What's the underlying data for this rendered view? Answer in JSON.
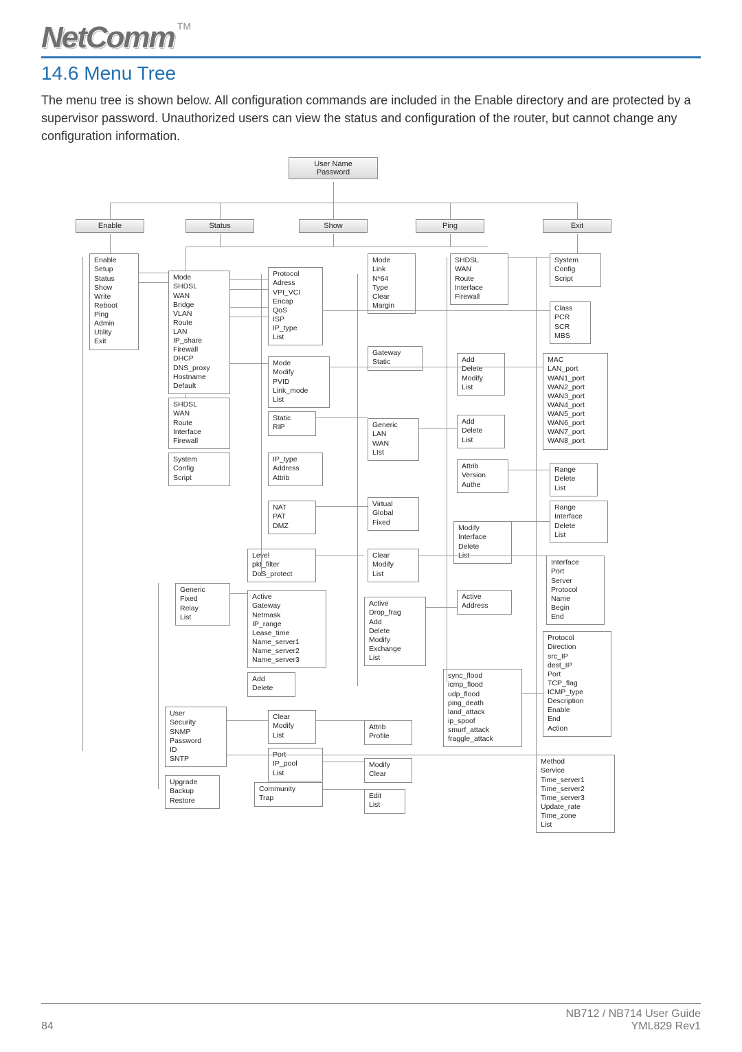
{
  "brand": {
    "name": "NetComm",
    "tm": "TM"
  },
  "heading": "14.6 Menu Tree",
  "intro": "The menu tree is shown below.  All configuration commands are included in the Enable directory and are protected by a supervisor password. Unauthorized users can view the status and configuration of the router, but cannot change any configuration information.",
  "root": {
    "line1": "User Name",
    "line2": "Password"
  },
  "tabs": {
    "enable": "Enable",
    "status": "Status",
    "show": "Show",
    "ping": "Ping",
    "exit": "Exit"
  },
  "col1": {
    "enable_list": [
      "Enable",
      "Setup",
      "Status",
      "Show",
      "Write",
      "Reboot",
      "Ping",
      "Admin",
      "Utility",
      "Exit"
    ]
  },
  "col2": {
    "setup_list": [
      "Mode",
      "SHDSL",
      "WAN",
      "Bridge",
      "VLAN",
      "Route",
      "LAN",
      "IP_share",
      "Firewall",
      "DHCP",
      "DNS_proxy",
      "Hostname",
      "Default"
    ],
    "show_list": [
      "SHDSL",
      "WAN",
      "Route",
      "Interface",
      "Firewall"
    ],
    "admin_list": [
      "System",
      "Config",
      "Script"
    ],
    "dhcp_list": [
      "Generic",
      "Fixed",
      "Relay",
      "List"
    ],
    "user_list": [
      "User",
      "Security",
      "SNMP",
      "Password",
      "ID",
      "SNTP"
    ],
    "util_list": [
      "Upgrade",
      "Backup",
      "Restore"
    ]
  },
  "col3": {
    "wan_list": [
      "Protocol",
      "Adress",
      "VPI_VCI",
      "Encap",
      "QoS",
      "ISP",
      "IP_type",
      "List"
    ],
    "vlan_list": [
      "Mode",
      "Modify",
      "PVID",
      "Link_mode",
      "List"
    ],
    "route_list": [
      "Static",
      "RIP"
    ],
    "lan_list": [
      "IP_type",
      "Address",
      "Attrib"
    ],
    "ipshare_list": [
      "NAT",
      "PAT",
      "DMZ"
    ],
    "firewall_list": [
      "Level",
      "pkt_filter",
      "DoS_protect"
    ],
    "dhcpgen_list": [
      "Active",
      "Gateway",
      "Netmask",
      "IP_range",
      "Lease_time",
      "Name_server1",
      "Name_server2",
      "Name_server3"
    ],
    "dhcpfix_list": [
      "Add",
      "Delete"
    ],
    "sec_list": [
      "Clear",
      "Modify",
      "List"
    ],
    "snmp_list": [
      "Port",
      "IP_pool",
      "List"
    ],
    "snmp2_list": [
      "Community",
      "Trap"
    ]
  },
  "col4": {
    "shdsl_list": [
      "Mode",
      "Link",
      "N*64",
      "Type",
      "Clear",
      "Margin"
    ],
    "bridge_list": [
      "Gateway",
      "Static"
    ],
    "rip_list": [
      "Generic",
      "LAN",
      "WAN",
      "LIst"
    ],
    "nat_list": [
      "Virtual",
      "Global",
      "Fixed"
    ],
    "pkt_list": [
      "Clear",
      "Modify",
      "List"
    ],
    "dos_list": [
      "Active",
      "Drop_frag",
      "Add",
      "Delete",
      "Modify",
      "Exchange",
      "List"
    ],
    "sec2_list": [
      "Attrib",
      "Profile"
    ],
    "ippool_list": [
      "Modify",
      "Clear"
    ],
    "comm_list": [
      "Edit",
      "List"
    ]
  },
  "col5": {
    "status_list": [
      "SHDSL",
      "WAN",
      "Route",
      "Interface",
      "Firewall"
    ],
    "static_list": [
      "Add",
      "Delete",
      "Modify",
      "List"
    ],
    "riplan_list": [
      "Add",
      "Delete",
      "List"
    ],
    "lanA_list": [
      "Attrib",
      "Version",
      "Authe"
    ],
    "pat_list": [
      "Modify",
      "Interface",
      "Delete",
      "List"
    ],
    "dosA_list": [
      "Active",
      "Address"
    ],
    "dosB_list": [
      "sync_flood",
      "icmp_flood",
      "udp_flood",
      "ping_death",
      "land_attack",
      "ip_spoof",
      "smurf_attack",
      "fraggle_attack"
    ]
  },
  "col6": {
    "exit_list": [
      "System",
      "Config",
      "Script"
    ],
    "qos_list": [
      "Class",
      "PCR",
      "SCR",
      "MBS"
    ],
    "vlanmod_list": [
      "MAC",
      "LAN_port",
      "WAN1_port",
      "WAN2_port",
      "WAN3_port",
      "WAN4_port",
      "WAN5_port",
      "WAN6_port",
      "WAN7_port",
      "WAN8_port"
    ],
    "range1_list": [
      "Range",
      "Delete",
      "List"
    ],
    "range2_list": [
      "Range",
      "Interface",
      "Delete",
      "List"
    ],
    "pktmod_list": [
      "Interface",
      "Port",
      "Server",
      "Protocol",
      "Name",
      "Begin",
      "End"
    ],
    "pktadd_list": [
      "Protocol",
      "Direction",
      "src_IP",
      "dest_IP",
      "Port",
      "TCP_flag",
      "ICMP_type",
      "Description",
      "Enable",
      "End",
      "Action"
    ],
    "sntp_list": [
      "Method",
      "Service",
      "Time_server1",
      "Time_server2",
      "Time_server3",
      "Update_rate",
      "Time_zone",
      "List"
    ]
  },
  "footer": {
    "page": "84",
    "title": "NB712 / NB714 User Guide",
    "rev": "YML829 Rev1"
  },
  "colors": {
    "accent": "#1f6fb2",
    "rule": "#2e74b5",
    "line": "#999999",
    "box_border": "#888888"
  }
}
